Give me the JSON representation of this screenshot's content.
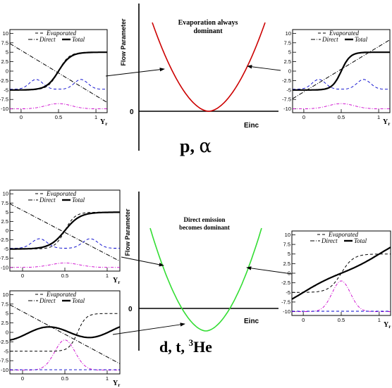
{
  "top": {
    "center": {
      "ylabel": "Flow Parameter",
      "xlabel": "Einc",
      "zero_label": "0",
      "title_line1": "Evaporation always",
      "title_line2": "dominant",
      "caption_main": "p, ",
      "caption_greek": "α",
      "curve_color": "#cc0000"
    }
  },
  "bottom": {
    "center": {
      "ylabel": "Flow Parameter",
      "xlabel": "Einc",
      "zero_label": "0",
      "title_line1": "Direct emission",
      "title_line2": "becomes dominant",
      "caption_main": "d, t, ",
      "caption_sup": "3",
      "caption_end": "He",
      "curve_color": "#33dd33"
    }
  },
  "panel": {
    "legend": {
      "evaporated": "Evaporated",
      "direct": "Direct",
      "total": "Total"
    },
    "xlabel_main": "Y",
    "xlabel_sub": "r",
    "yticks": [
      "10",
      "7.5",
      "5",
      "2.5",
      "0",
      "-2.5",
      "-5",
      "-7.5",
      "-10"
    ],
    "xticks": [
      "0",
      "0.5",
      "1"
    ]
  },
  "colors": {
    "evaporated": "#0000cc",
    "direct": "#cc00cc",
    "total": "#000000"
  }
}
